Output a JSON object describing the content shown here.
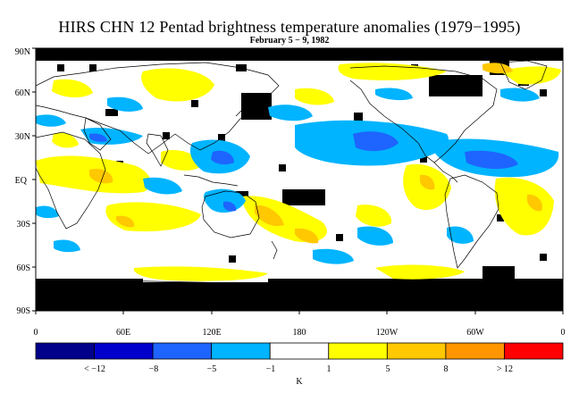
{
  "title": "HIRS CHN 12 Pentad brightness temperature anomalies (1979−1995)",
  "subtitle": "February 5 − 9, 1982",
  "map": {
    "latitude_labels": [
      "90N",
      "60N",
      "30N",
      "EQ",
      "30S",
      "60S",
      "90S"
    ],
    "longitude_labels": [
      "0",
      "60E",
      "120E",
      "180",
      "120W",
      "60W",
      "0"
    ]
  },
  "colorbar": {
    "colors": [
      "#00008b",
      "#0000cd",
      "#1e64ff",
      "#00b4ff",
      "#ffffff",
      "#ffff00",
      "#ffc800",
      "#ff9600",
      "#ff0000"
    ],
    "tick_labels": [
      "< −12",
      "−8",
      "−5",
      "−1",
      "1",
      "5",
      "8",
      "> 12"
    ],
    "unit": "K"
  }
}
